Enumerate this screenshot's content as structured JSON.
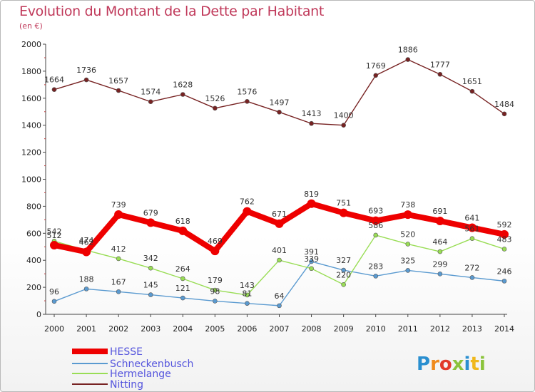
{
  "title": "Evolution du Montant de la Dette par Habitant",
  "unit": "(en €)",
  "brand": "Proxiti",
  "chart_data": {
    "type": "line",
    "x": [
      "2000",
      "2001",
      "2002",
      "2003",
      "2004",
      "2005",
      "2006",
      "2007",
      "2008",
      "2009",
      "2010",
      "2011",
      "2012",
      "2013",
      "2014"
    ],
    "ylim": [
      0,
      2000
    ],
    "yticks": [
      0,
      200,
      400,
      600,
      800,
      1000,
      1200,
      1400,
      1600,
      1800,
      2000
    ],
    "grid": false,
    "legend": "bottom-left",
    "series": [
      {
        "name": "HESSE",
        "color": "#ee0000",
        "values": [
          512,
          462,
          739,
          679,
          618,
          469,
          762,
          671,
          819,
          751,
          693,
          738,
          691,
          641,
          592
        ]
      },
      {
        "name": "Schneckenbusch",
        "color": "#5a9ad0",
        "values": [
          96,
          188,
          167,
          145,
          121,
          98,
          81,
          64,
          391,
          327,
          283,
          325,
          299,
          272,
          246
        ]
      },
      {
        "name": "Hermelange",
        "color": "#99dd55",
        "values": [
          542,
          474,
          412,
          342,
          264,
          179,
          143,
          401,
          339,
          220,
          586,
          520,
          464,
          561,
          483
        ]
      },
      {
        "name": "Nitting",
        "color": "#772222",
        "values": [
          1664,
          1736,
          1657,
          1574,
          1628,
          1526,
          1576,
          1497,
          1413,
          1400,
          1769,
          1886,
          1777,
          1651,
          1484
        ]
      }
    ]
  }
}
